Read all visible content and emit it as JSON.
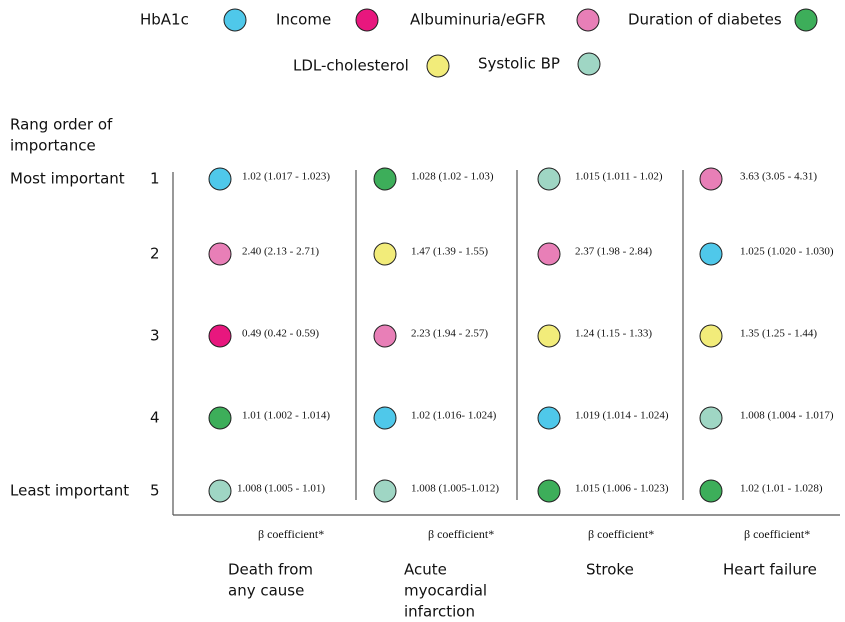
{
  "legend": {
    "items": [
      {
        "name": "HbA1c",
        "color": "#4fc8ea"
      },
      {
        "name": "Income",
        "color": "#e8177e"
      },
      {
        "name": "Albuminuria/eGFR",
        "color": "#e87fb7"
      },
      {
        "name": "Duration of diabetes",
        "color": "#3dae5a"
      },
      {
        "name": "LDL-cholesterol",
        "color": "#f2ec7a"
      },
      {
        "name": "Systolic BP",
        "color": "#9fd6c4"
      }
    ]
  },
  "rank_header": [
    "Rang order of",
    "importance"
  ],
  "ranks": [
    {
      "number": "1",
      "label": "Most important"
    },
    {
      "number": "2"
    },
    {
      "number": "3"
    },
    {
      "number": "4"
    },
    {
      "number": "5",
      "label": "Least important"
    }
  ],
  "columns": [
    {
      "outcome": [
        "Death from",
        "any cause"
      ],
      "coefficient_label": "β coefficient*",
      "cells": [
        {
          "color": "#4fc8ea",
          "text": "1.02 (1.017 - 1.023)"
        },
        {
          "color": "#e87fb7",
          "text": "2.40 (2.13 - 2.71)"
        },
        {
          "color": "#e8177e",
          "text": "0.49 (0.42 - 0.59)"
        },
        {
          "color": "#3dae5a",
          "text": "1.01 (1.002 - 1.014)"
        },
        {
          "color": "#9fd6c4",
          "text": "1.008 (1.005 - 1.01)"
        }
      ]
    },
    {
      "outcome": [
        "Acute",
        "myocardial",
        "infarction"
      ],
      "coefficient_label": "β coefficient*",
      "cells": [
        {
          "color": "#3dae5a",
          "text": "1.028 (1.02 - 1.03)"
        },
        {
          "color": "#f2ec7a",
          "text": "1.47 (1.39 - 1.55)"
        },
        {
          "color": "#e87fb7",
          "text": "2.23 (1.94 - 2.57)"
        },
        {
          "color": "#4fc8ea",
          "text": "1.02 (1.016- 1.024)"
        },
        {
          "color": "#9fd6c4",
          "text": "1.008 (1.005-1.012)"
        }
      ]
    },
    {
      "outcome": [
        "Stroke"
      ],
      "coefficient_label": "β coefficient*",
      "cells": [
        {
          "color": "#9fd6c4",
          "text": "1.015 (1.011 - 1.02)"
        },
        {
          "color": "#e87fb7",
          "text": "2.37 (1.98 - 2.84)"
        },
        {
          "color": "#f2ec7a",
          "text": "1.24 (1.15 - 1.33)"
        },
        {
          "color": "#4fc8ea",
          "text": "1.019 (1.014 - 1.024)"
        },
        {
          "color": "#3dae5a",
          "text": "1.015 (1.006 - 1.023)"
        }
      ]
    },
    {
      "outcome": [
        "Heart failure"
      ],
      "coefficient_label": "β coefficient*",
      "cells": [
        {
          "color": "#e87fb7",
          "text": "3.63 (3.05 - 4.31)"
        },
        {
          "color": "#4fc8ea",
          "text": "1.025 (1.020 - 1.030)"
        },
        {
          "color": "#f2ec7a",
          "text": "1.35 (1.25 - 1.44)"
        },
        {
          "color": "#9fd6c4",
          "text": "1.008 (1.004 - 1.017)"
        },
        {
          "color": "#3dae5a",
          "text": "1.02 (1.01 - 1.028)"
        }
      ]
    }
  ]
}
